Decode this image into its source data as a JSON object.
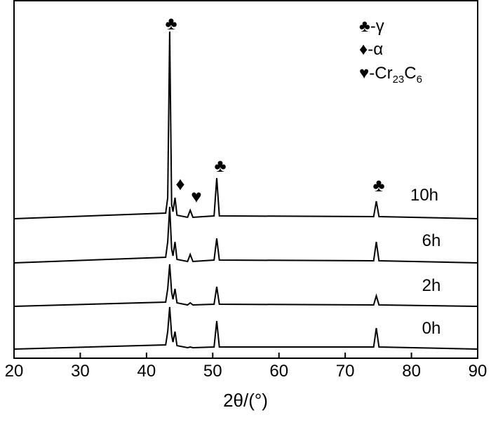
{
  "chart_data": {
    "type": "line",
    "xlabel": "2θ/(°)",
    "xlim": [
      20,
      90
    ],
    "xticks": [
      20,
      30,
      40,
      50,
      60,
      70,
      80,
      90
    ],
    "x": [
      20,
      42.9,
      43.2,
      43.5,
      43.8,
      44.0,
      44.3,
      44.6,
      46.2,
      46.6,
      47.0,
      50.2,
      50.6,
      51.0,
      74.3,
      74.7,
      75.1,
      90
    ],
    "series": [
      {
        "name": "10h",
        "color": "#000000",
        "values": [
          0,
          8,
          30,
          267,
          20,
          10,
          30,
          5,
          2,
          12,
          2,
          4,
          58,
          4,
          3,
          25,
          3,
          0
        ]
      },
      {
        "name": "6h",
        "color": "#000000",
        "values": [
          0,
          8,
          30,
          80,
          20,
          10,
          30,
          5,
          2,
          12,
          2,
          4,
          35,
          4,
          3,
          30,
          3,
          0
        ]
      },
      {
        "name": "2h",
        "color": "#000000",
        "values": [
          0,
          6,
          25,
          60,
          20,
          10,
          25,
          5,
          2,
          5,
          2,
          3,
          28,
          3,
          2,
          15,
          2,
          0
        ]
      },
      {
        "name": "0h",
        "color": "#000000",
        "values": [
          0,
          6,
          25,
          60,
          20,
          10,
          25,
          5,
          2,
          3,
          2,
          3,
          40,
          3,
          3,
          30,
          3,
          0
        ]
      }
    ],
    "annotations": [
      "♣",
      "♦",
      "♥",
      "♣",
      "♣"
    ],
    "legend": [
      [
        "♣",
        "-γ"
      ],
      [
        "♦",
        "-α"
      ],
      [
        "♥",
        "-Cr",
        "23",
        "C",
        "6"
      ]
    ]
  }
}
